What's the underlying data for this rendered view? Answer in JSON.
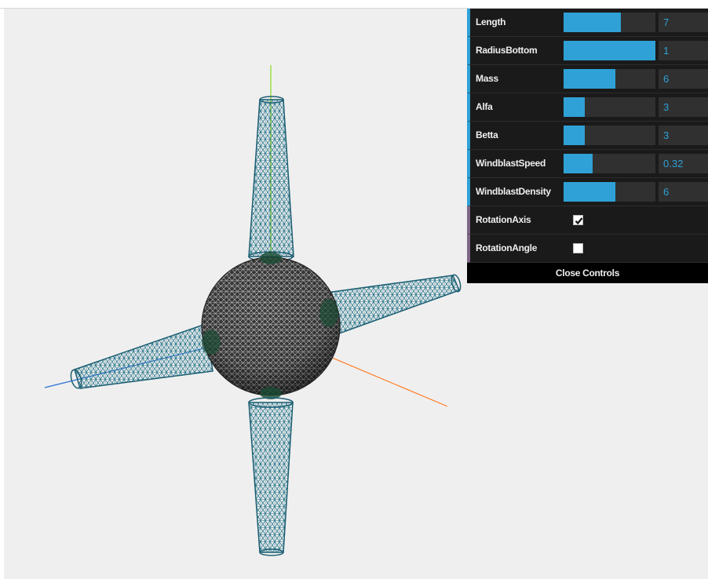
{
  "controls": {
    "length": {
      "label": "Length",
      "value": "7",
      "fraction": 0.62
    },
    "radius_bottom": {
      "label": "RadiusBottom",
      "value": "1",
      "fraction": 1.0
    },
    "mass": {
      "label": "Mass",
      "value": "6",
      "fraction": 0.56
    },
    "alfa": {
      "label": "Alfa",
      "value": "3",
      "fraction": 0.23
    },
    "betta": {
      "label": "Betta",
      "value": "3",
      "fraction": 0.23
    },
    "windblast_speed": {
      "label": "WindblastSpeed",
      "value": "0.32",
      "fraction": 0.32
    },
    "windblast_density": {
      "label": "WindblastDensity",
      "value": "6",
      "fraction": 0.56
    },
    "rotation_axis": {
      "label": "RotationAxis",
      "checked": true
    },
    "rotation_angle": {
      "label": "RotationAngle",
      "checked": false
    },
    "close_label": "Close Controls"
  },
  "colors": {
    "accent": "#2fa1d6",
    "panel_bg": "#1a1a1a",
    "bool_border": "#806787",
    "wire_cone": "#1b5e72",
    "wire_sphere": "#2a2a2a",
    "axis_x": "#ff7f2a",
    "axis_y": "#88dd22",
    "axis_z": "#2a6fd6"
  }
}
